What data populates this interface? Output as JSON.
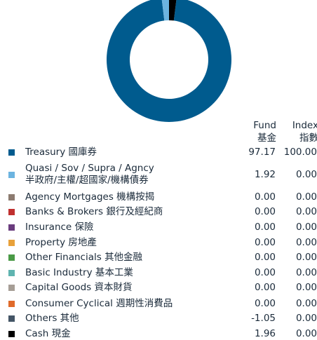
{
  "chart_data": {
    "type": "donut",
    "column_headers": [
      [
        "Fund",
        "基金"
      ],
      [
        "Index",
        "指數"
      ]
    ],
    "categories": [
      "Treasury 國庫券",
      "Quasi / Sov / Supra / Agncy\n半政府/主權/超國家/機構債券",
      "Agency Mortgages 機構按揭",
      "Banks & Brokers 銀行及經紀商",
      "Insurance 保險",
      "Property 房地產",
      "Other Financials 其他金融",
      "Basic Industry 基本工業",
      "Capital Goods 資本財貨",
      "Consumer Cyclical 週期性消費品",
      "Others 其他",
      "Cash 現金"
    ],
    "values": [
      97.17,
      1.92,
      0,
      0,
      0,
      0,
      0,
      0,
      0,
      0,
      -1.05,
      1.96
    ],
    "value_labels": [
      "97.17",
      "1.92",
      "0.00",
      "0.00",
      "0.00",
      "0.00",
      "0.00",
      "0.00",
      "0.00",
      "0.00",
      "-1.05",
      "1.96"
    ],
    "index_values": [
      100,
      0,
      0,
      0,
      0,
      0,
      0,
      0,
      0,
      0,
      0,
      0
    ],
    "index_labels": [
      "100.00",
      "0.00",
      "0.00",
      "0.00",
      "0.00",
      "0.00",
      "0.00",
      "0.00",
      "0.00",
      "0.00",
      "0.00",
      "0.00"
    ],
    "colors": [
      "#005b8e",
      "#6cb4e0",
      "#8c7b70",
      "#c0302f",
      "#6a3c7e",
      "#e8a13a",
      "#4a9a46",
      "#5fb4b0",
      "#a69e96",
      "#e06a2a",
      "#445566",
      "#000000"
    ]
  }
}
